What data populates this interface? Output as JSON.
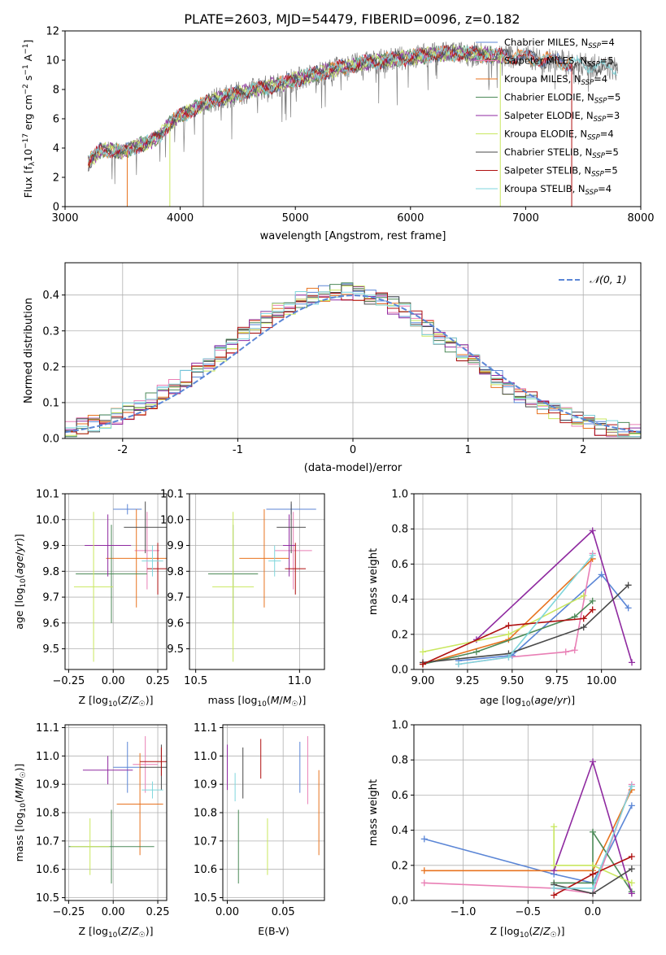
{
  "figure": {
    "title": "PLATE=2603, MJD=54479, FIBERID=0096, z=0.182"
  },
  "colors": {
    "chabrier_miles": "#5b86d6",
    "salpeter_miles": "#e97fb5",
    "kroupa_miles": "#e8731f",
    "chabrier_elodie": "#4c8a58",
    "salpeter_elodie": "#8f2aa0",
    "kroupa_elodie": "#c9e75f",
    "chabrier_stelib": "#4a4a4a",
    "salpeter_stelib": "#b01010",
    "kroupa_stelib": "#7fd6dc",
    "gaussian": "#5b86d6",
    "spectrum_data": "#808080"
  },
  "chart_data": [
    {
      "id": "spectrum",
      "type": "line",
      "xlabel": "wavelength [Angstrom, rest frame]",
      "ylabel": "Flux [f_λ10^-17 erg cm^-2 s^-1 A^-1]",
      "xlim": [
        3000,
        8000
      ],
      "ylim": [
        0,
        12
      ],
      "xticks": [
        3000,
        4000,
        5000,
        6000,
        7000,
        8000
      ],
      "yticks": [
        0,
        2,
        4,
        6,
        8,
        10,
        12
      ],
      "grid": false,
      "legend_position": "top-right",
      "legend": [
        {
          "label": "Chabrier MILES, N",
          "sub": "SSP",
          "suffix": "=4",
          "color_key": "chabrier_miles"
        },
        {
          "label": "Salpeter MILES, N",
          "sub": "SSP",
          "suffix": "=5",
          "color_key": "salpeter_miles"
        },
        {
          "label": "Kroupa MILES, N",
          "sub": "SSP",
          "suffix": "=4",
          "color_key": "kroupa_miles"
        },
        {
          "label": "Chabrier ELODIE, N",
          "sub": "SSP",
          "suffix": "=5",
          "color_key": "chabrier_elodie"
        },
        {
          "label": "Salpeter ELODIE, N",
          "sub": "SSP",
          "suffix": "=3",
          "color_key": "salpeter_elodie"
        },
        {
          "label": "Kroupa ELODIE, N",
          "sub": "SSP",
          "suffix": "=4",
          "color_key": "kroupa_elodie"
        },
        {
          "label": "Chabrier STELIB, N",
          "sub": "SSP",
          "suffix": "=5",
          "color_key": "chabrier_stelib"
        },
        {
          "label": "Salpeter STELIB, N",
          "sub": "SSP",
          "suffix": "=5",
          "color_key": "salpeter_stelib"
        },
        {
          "label": "Kroupa STELIB, N",
          "sub": "SSP",
          "suffix": "=4",
          "color_key": "kroupa_stelib"
        }
      ],
      "envelope": {
        "x": [
          3200,
          3300,
          3400,
          3500,
          3600,
          3700,
          3800,
          3900,
          4000,
          4100,
          4200,
          4300,
          4500,
          4700,
          4900,
          5000,
          5200,
          5400,
          5600,
          5800,
          6000,
          6200,
          6400,
          6600,
          6800,
          7000,
          7200,
          7400,
          7600,
          7800
        ],
        "y": [
          3.0,
          3.8,
          3.9,
          3.7,
          4.1,
          4.3,
          4.7,
          5.6,
          6.2,
          6.6,
          7.0,
          7.3,
          7.7,
          8.1,
          8.4,
          8.7,
          9.1,
          9.5,
          9.8,
          10.0,
          10.2,
          10.4,
          10.5,
          10.4,
          10.3,
          10.2,
          10.0,
          9.8,
          9.6,
          9.4
        ]
      },
      "dips": [
        {
          "x": 3540,
          "y": 0.0
        },
        {
          "x": 3910,
          "y": 0.0
        },
        {
          "x": 4200,
          "y": 0.0
        },
        {
          "x": 6780,
          "y": 0.0
        },
        {
          "x": 7400,
          "y": 0.0
        }
      ]
    },
    {
      "id": "residuals",
      "type": "histogram",
      "xlabel": "(data-model)/error",
      "ylabel": "Normed distribution",
      "xlim": [
        -2.5,
        2.5
      ],
      "ylim": [
        0,
        0.49
      ],
      "xticks": [
        -2,
        -1,
        0,
        1,
        2
      ],
      "yticks": [
        0.0,
        0.1,
        0.2,
        0.3,
        0.4
      ],
      "grid": true,
      "legend_position": "top-right",
      "legend_label": "𝒩(0, 1)",
      "bin_edges": [
        -2.5,
        -2.4,
        -2.3,
        -2.2,
        -2.1,
        -2.0,
        -1.9,
        -1.8,
        -1.7,
        -1.6,
        -1.5,
        -1.4,
        -1.3,
        -1.2,
        -1.1,
        -1.0,
        -0.9,
        -0.8,
        -0.7,
        -0.6,
        -0.5,
        -0.4,
        -0.3,
        -0.2,
        -0.1,
        0.0,
        0.1,
        0.2,
        0.3,
        0.4,
        0.5,
        0.6,
        0.7,
        0.8,
        0.9,
        1.0,
        1.1,
        1.2,
        1.3,
        1.4,
        1.5,
        1.6,
        1.7,
        1.8,
        1.9,
        2.0,
        2.1,
        2.2,
        2.3,
        2.4,
        2.5
      ]
    },
    {
      "id": "age-vs-z",
      "type": "errorbar",
      "xlabel": "Z [log10(Z/Z☉)]",
      "ylabel": "age [log10(age/yr)]",
      "xlim": [
        -0.27,
        0.3
      ],
      "ylim": [
        9.42,
        10.1
      ],
      "xticks": [
        -0.25,
        0.0,
        0.25
      ],
      "xticklabels": [
        "−0.25",
        "0.00",
        "0.25"
      ],
      "yticks": [
        9.5,
        9.6,
        9.7,
        9.8,
        9.9,
        10.0,
        10.1
      ],
      "grid": true,
      "points": [
        {
          "key": "chabrier_miles",
          "x": 0.08,
          "xerr": 0.08,
          "y": 10.04,
          "yerr": 0.02
        },
        {
          "key": "salpeter_miles",
          "x": 0.19,
          "xerr": 0.07,
          "y": 9.88,
          "yerr": 0.15
        },
        {
          "key": "kroupa_miles",
          "x": 0.13,
          "xerr": 0.17,
          "y": 9.85,
          "yerr": 0.19
        },
        {
          "key": "chabrier_elodie",
          "x": -0.01,
          "xerr": 0.2,
          "y": 9.79,
          "yerr": 0.19
        },
        {
          "key": "salpeter_elodie",
          "x": -0.03,
          "xerr": 0.13,
          "y": 9.9,
          "yerr": 0.12
        },
        {
          "key": "kroupa_elodie",
          "x": -0.11,
          "xerr": 0.11,
          "y": 9.74,
          "yerr": 0.29
        },
        {
          "key": "chabrier_stelib",
          "x": 0.18,
          "xerr": 0.12,
          "y": 9.97,
          "yerr": 0.1
        },
        {
          "key": "salpeter_stelib",
          "x": 0.25,
          "xerr": 0.06,
          "y": 9.81,
          "yerr": 0.1
        },
        {
          "key": "kroupa_stelib",
          "x": 0.22,
          "xerr": 0.06,
          "y": 9.84,
          "yerr": 0.06
        }
      ]
    },
    {
      "id": "age-vs-mass",
      "type": "errorbar",
      "xlabel": "mass [log10(M/M☉)]",
      "xlim": [
        10.47,
        11.12
      ],
      "ylim": [
        9.42,
        10.1
      ],
      "xticks": [
        10.5,
        11.0
      ],
      "xticklabels": [
        "10.5",
        "11.0"
      ],
      "yticks": [
        9.5,
        9.6,
        9.7,
        9.8,
        9.9,
        10.0,
        10.1
      ],
      "grid": true,
      "points": [
        {
          "key": "chabrier_miles",
          "x": 10.96,
          "xerr": 0.12,
          "y": 10.04,
          "yerr": 0.02
        },
        {
          "key": "salpeter_miles",
          "x": 10.97,
          "xerr": 0.09,
          "y": 9.88,
          "yerr": 0.15
        },
        {
          "key": "kroupa_miles",
          "x": 10.83,
          "xerr": 0.12,
          "y": 9.85,
          "yerr": 0.19
        },
        {
          "key": "chabrier_elodie",
          "x": 10.68,
          "xerr": 0.12,
          "y": 9.79,
          "yerr": 0.19
        },
        {
          "key": "salpeter_elodie",
          "x": 10.95,
          "xerr": 0.03,
          "y": 9.9,
          "yerr": 0.12
        },
        {
          "key": "kroupa_elodie",
          "x": 10.68,
          "xerr": 0.1,
          "y": 9.74,
          "yerr": 0.29
        },
        {
          "key": "chabrier_stelib",
          "x": 10.96,
          "xerr": 0.07,
          "y": 9.97,
          "yerr": 0.1
        },
        {
          "key": "salpeter_stelib",
          "x": 10.98,
          "xerr": 0.05,
          "y": 9.81,
          "yerr": 0.1
        },
        {
          "key": "kroupa_stelib",
          "x": 10.88,
          "xerr": 0.03,
          "y": 9.84,
          "yerr": 0.06
        }
      ]
    },
    {
      "id": "massweight-vs-age",
      "type": "line",
      "xlabel": "age [log10(age/yr)]",
      "ylabel": "mass weight",
      "xlim": [
        8.95,
        10.22
      ],
      "ylim": [
        0,
        1.0
      ],
      "xticks": [
        9.0,
        9.25,
        9.5,
        9.75,
        10.0
      ],
      "xticklabels": [
        "9.00",
        "9.25",
        "9.50",
        "9.75",
        "10.00"
      ],
      "yticks": [
        0.0,
        0.2,
        0.4,
        0.6,
        0.8,
        1.0
      ],
      "grid": true,
      "series": [
        {
          "key": "chabrier_miles",
          "x": [
            9.2,
            9.5,
            10.0,
            10.15
          ],
          "y": [
            0.05,
            0.08,
            0.54,
            0.35
          ]
        },
        {
          "key": "salpeter_miles",
          "x": [
            9.2,
            9.48,
            9.8,
            9.85,
            9.95
          ],
          "y": [
            0.03,
            0.07,
            0.1,
            0.11,
            0.66
          ]
        },
        {
          "key": "kroupa_miles",
          "x": [
            9.0,
            9.48,
            9.95
          ],
          "y": [
            0.03,
            0.17,
            0.63
          ]
        },
        {
          "key": "chabrier_elodie",
          "x": [
            9.0,
            9.3,
            9.85,
            9.95
          ],
          "y": [
            0.03,
            0.1,
            0.3,
            0.39
          ]
        },
        {
          "key": "salpeter_elodie",
          "x": [
            9.3,
            9.95,
            10.17
          ],
          "y": [
            0.17,
            0.79,
            0.04
          ]
        },
        {
          "key": "kroupa_elodie",
          "x": [
            9.0,
            9.48,
            9.9
          ],
          "y": [
            0.1,
            0.2,
            0.42
          ]
        },
        {
          "key": "chabrier_stelib",
          "x": [
            9.0,
            9.48,
            9.9,
            10.15
          ],
          "y": [
            0.04,
            0.09,
            0.24,
            0.48
          ]
        },
        {
          "key": "salpeter_stelib",
          "x": [
            9.0,
            9.48,
            9.9,
            9.95
          ],
          "y": [
            0.03,
            0.25,
            0.29,
            0.34
          ]
        },
        {
          "key": "kroupa_stelib",
          "x": [
            9.2,
            9.48,
            9.95
          ],
          "y": [
            0.03,
            0.07,
            0.65
          ]
        }
      ]
    },
    {
      "id": "mass-vs-z",
      "type": "errorbar",
      "xlabel": "Z [log10(Z/Z☉)]",
      "ylabel": "mass [log10(M/M☉)]",
      "xlim": [
        -0.27,
        0.3
      ],
      "ylim": [
        10.49,
        11.11
      ],
      "xticks": [
        -0.25,
        0.0,
        0.25
      ],
      "xticklabels": [
        "−0.25",
        "0.00",
        "0.25"
      ],
      "yticks": [
        10.5,
        10.6,
        10.7,
        10.8,
        10.9,
        11.0,
        11.1
      ],
      "grid": true,
      "points": [
        {
          "key": "chabrier_miles",
          "x": 0.08,
          "xerr": 0.08,
          "y": 10.96,
          "yerr": 0.09
        },
        {
          "key": "salpeter_miles",
          "x": 0.18,
          "xerr": 0.07,
          "y": 10.97,
          "yerr": 0.1
        },
        {
          "key": "kroupa_miles",
          "x": 0.15,
          "xerr": 0.13,
          "y": 10.83,
          "yerr": 0.18
        },
        {
          "key": "chabrier_elodie",
          "x": -0.01,
          "xerr": 0.24,
          "y": 10.68,
          "yerr": 0.13
        },
        {
          "key": "salpeter_elodie",
          "x": -0.03,
          "xerr": 0.14,
          "y": 10.95,
          "yerr": 0.05
        },
        {
          "key": "kroupa_elodie",
          "x": -0.13,
          "xerr": 0.11,
          "y": 10.68,
          "yerr": 0.1
        },
        {
          "key": "chabrier_stelib",
          "x": 0.27,
          "xerr": 0.12,
          "y": 10.96,
          "yerr": 0.08
        },
        {
          "key": "salpeter_stelib",
          "x": 0.27,
          "xerr": 0.12,
          "y": 10.98,
          "yerr": 0.05
        },
        {
          "key": "kroupa_stelib",
          "x": 0.22,
          "xerr": 0.06,
          "y": 10.88,
          "yerr": 0.03
        }
      ]
    },
    {
      "id": "mass-vs-ebv",
      "type": "errorbar",
      "xlabel": "E(B-V)",
      "xlim": [
        -0.004,
        0.087
      ],
      "ylim": [
        10.49,
        11.11
      ],
      "xticks": [
        0.0,
        0.05
      ],
      "xticklabels": [
        "0.00",
        "0.05"
      ],
      "yticks": [
        10.5,
        10.6,
        10.7,
        10.8,
        10.9,
        11.0,
        11.1
      ],
      "grid": true,
      "points": [
        {
          "key": "chabrier_miles",
          "x": 0.065,
          "xerr": 0.0,
          "y": 10.96,
          "yerr": 0.09
        },
        {
          "key": "salpeter_miles",
          "x": 0.072,
          "xerr": 0.0,
          "y": 10.95,
          "yerr": 0.12
        },
        {
          "key": "kroupa_miles",
          "x": 0.082,
          "xerr": 0.0,
          "y": 10.8,
          "yerr": 0.15
        },
        {
          "key": "chabrier_elodie",
          "x": 0.01,
          "xerr": 0.0,
          "y": 10.68,
          "yerr": 0.13
        },
        {
          "key": "salpeter_elodie",
          "x": 0.0,
          "xerr": 0.0,
          "y": 10.96,
          "yerr": 0.08
        },
        {
          "key": "kroupa_elodie",
          "x": 0.036,
          "xerr": 0.0,
          "y": 10.68,
          "yerr": 0.1
        },
        {
          "key": "chabrier_stelib",
          "x": 0.014,
          "xerr": 0.0,
          "y": 10.94,
          "yerr": 0.09
        },
        {
          "key": "salpeter_stelib",
          "x": 0.03,
          "xerr": 0.0,
          "y": 10.99,
          "yerr": 0.07
        },
        {
          "key": "kroupa_stelib",
          "x": 0.007,
          "xerr": 0.0,
          "y": 10.89,
          "yerr": 0.05
        }
      ]
    },
    {
      "id": "massweight-vs-z",
      "type": "line",
      "xlabel": "Z [log10(Z/Z☉)]",
      "ylabel": "mass weight",
      "xlim": [
        -1.38,
        0.37
      ],
      "ylim": [
        0,
        1.0
      ],
      "xticks": [
        -1.0,
        -0.5,
        0.0
      ],
      "xticklabels": [
        "−1.0",
        "−0.5",
        "0.0"
      ],
      "yticks": [
        0.0,
        0.2,
        0.4,
        0.6,
        0.8,
        1.0
      ],
      "grid": true,
      "series": [
        {
          "key": "chabrier_miles",
          "x": [
            -1.3,
            -0.3,
            0.0,
            0.3
          ],
          "y": [
            0.35,
            0.15,
            0.1,
            0.54
          ]
        },
        {
          "key": "salpeter_miles",
          "x": [
            -1.3,
            -0.3,
            0.0,
            0.3
          ],
          "y": [
            0.1,
            0.07,
            0.04,
            0.66
          ]
        },
        {
          "key": "kroupa_miles",
          "x": [
            -1.3,
            0.0,
            0.3
          ],
          "y": [
            0.17,
            0.17,
            0.63
          ]
        },
        {
          "key": "chabrier_elodie",
          "x": [
            -0.3,
            0.0,
            0.0,
            0.3
          ],
          "y": [
            0.1,
            0.1,
            0.39,
            0.05
          ]
        },
        {
          "key": "salpeter_elodie",
          "x": [
            -0.3,
            0.0,
            0.3
          ],
          "y": [
            0.17,
            0.79,
            0.04
          ]
        },
        {
          "key": "kroupa_elodie",
          "x": [
            -0.3,
            -0.3,
            0.0,
            0.3
          ],
          "y": [
            0.42,
            0.2,
            0.2,
            0.1
          ]
        },
        {
          "key": "chabrier_stelib",
          "x": [
            -0.3,
            0.0,
            0.3
          ],
          "y": [
            0.09,
            0.04,
            0.18
          ]
        },
        {
          "key": "salpeter_stelib",
          "x": [
            -0.3,
            0.0,
            0.3
          ],
          "y": [
            0.03,
            0.15,
            0.25
          ]
        },
        {
          "key": "kroupa_stelib",
          "x": [
            -0.3,
            0.0,
            0.3
          ],
          "y": [
            0.07,
            0.07,
            0.65
          ]
        }
      ]
    }
  ]
}
